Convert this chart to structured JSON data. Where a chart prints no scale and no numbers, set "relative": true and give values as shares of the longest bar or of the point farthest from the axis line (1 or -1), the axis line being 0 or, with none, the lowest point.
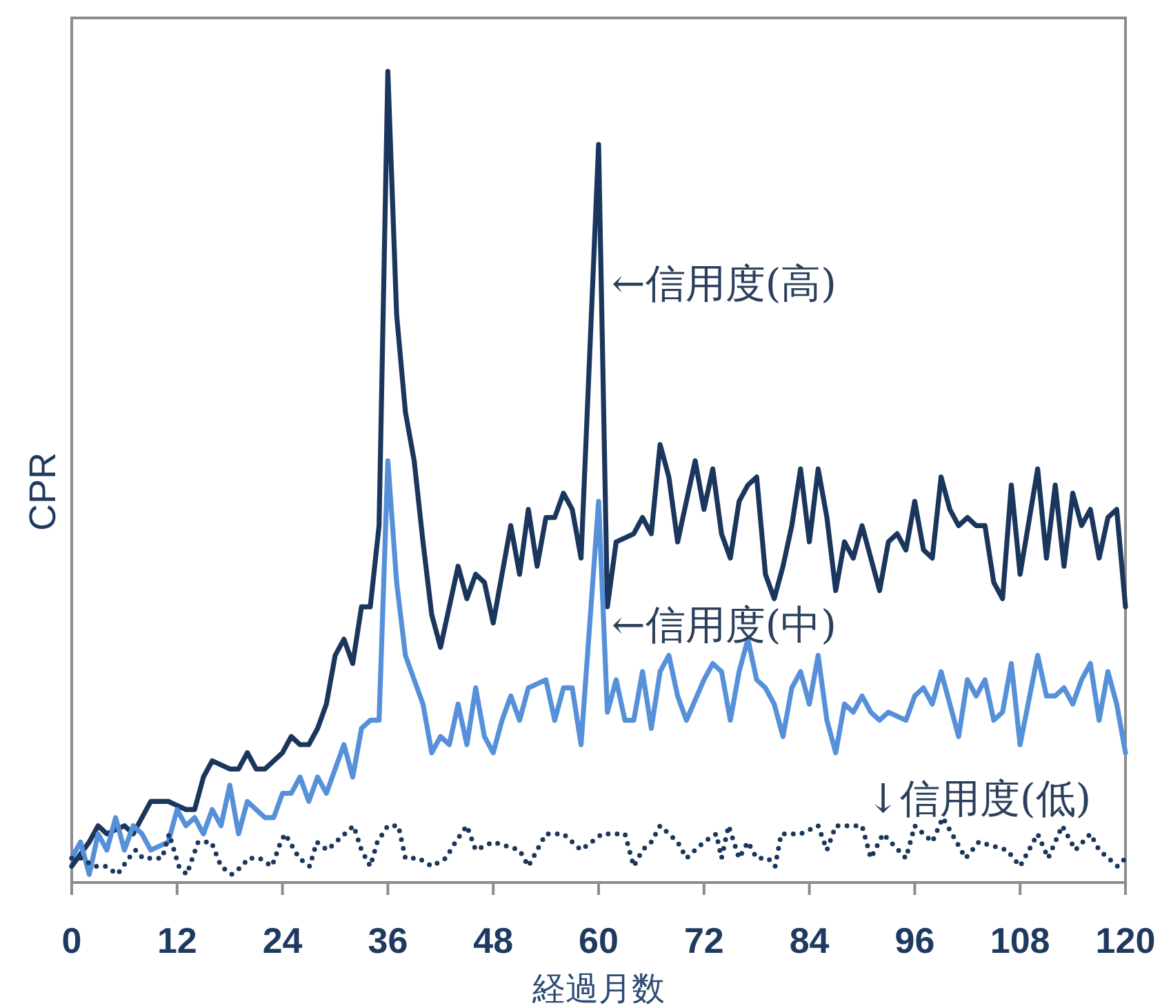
{
  "chart_data": {
    "type": "line",
    "relative": true,
    "xlabel": "経過月数",
    "ylabel": "CPR",
    "xlim": [
      0,
      120
    ],
    "xticks": [
      0,
      12,
      24,
      36,
      48,
      60,
      72,
      84,
      96,
      108,
      120
    ],
    "marker": "none",
    "series": [
      {
        "name": "←信用度(高)",
        "color": "#1b365d",
        "line_style": "solid",
        "x": [
          0,
          2,
          3,
          4,
          5,
          6,
          7,
          8,
          9,
          10,
          11,
          13,
          14,
          15,
          16,
          18,
          19,
          20,
          21,
          22,
          24,
          25,
          26,
          27,
          28,
          29,
          30,
          31,
          32,
          33,
          34,
          35,
          36,
          37,
          38,
          39,
          40,
          41,
          42,
          44,
          45,
          46,
          47,
          48,
          50,
          51,
          52,
          53,
          54,
          55,
          56,
          57,
          58,
          60,
          61,
          62,
          64,
          65,
          66,
          67,
          68,
          69,
          71,
          72,
          73,
          74,
          75,
          76,
          77,
          78,
          79,
          80,
          81,
          82,
          83,
          84,
          85,
          86,
          87,
          88,
          89,
          90,
          92,
          93,
          94,
          95,
          96,
          97,
          98,
          99,
          100,
          101,
          102,
          103,
          104,
          105,
          106,
          107,
          108,
          110,
          111,
          112,
          113,
          114,
          115,
          116,
          117,
          118,
          119,
          120
        ],
        "values": [
          0.02,
          0.05,
          0.07,
          0.06,
          0.065,
          0.07,
          0.06,
          0.08,
          0.1,
          0.1,
          0.1,
          0.09,
          0.09,
          0.13,
          0.15,
          0.14,
          0.14,
          0.16,
          0.14,
          0.14,
          0.16,
          0.18,
          0.17,
          0.17,
          0.19,
          0.22,
          0.28,
          0.3,
          0.27,
          0.34,
          0.34,
          0.44,
          1.0,
          0.7,
          0.58,
          0.52,
          0.42,
          0.33,
          0.29,
          0.39,
          0.35,
          0.38,
          0.37,
          0.32,
          0.44,
          0.38,
          0.46,
          0.39,
          0.45,
          0.45,
          0.48,
          0.46,
          0.4,
          0.91,
          0.34,
          0.42,
          0.43,
          0.45,
          0.43,
          0.54,
          0.5,
          0.42,
          0.52,
          0.46,
          0.51,
          0.43,
          0.4,
          0.47,
          0.49,
          0.5,
          0.38,
          0.35,
          0.39,
          0.44,
          0.51,
          0.42,
          0.51,
          0.45,
          0.36,
          0.42,
          0.4,
          0.44,
          0.36,
          0.42,
          0.43,
          0.41,
          0.47,
          0.41,
          0.4,
          0.5,
          0.46,
          0.44,
          0.45,
          0.44,
          0.44,
          0.37,
          0.35,
          0.49,
          0.38,
          0.51,
          0.4,
          0.49,
          0.39,
          0.48,
          0.44,
          0.46,
          0.4,
          0.45,
          0.46,
          0.34
        ]
      },
      {
        "name": "←信用度(中)",
        "color": "#5590d9",
        "line_style": "solid",
        "x": [
          0,
          1,
          2,
          3,
          4,
          5,
          6,
          7,
          8,
          9,
          11,
          12,
          13,
          14,
          15,
          16,
          17,
          18,
          19,
          20,
          21,
          22,
          23,
          24,
          25,
          26,
          27,
          28,
          29,
          31,
          32,
          33,
          34,
          35,
          36,
          37,
          38,
          39,
          40,
          41,
          42,
          43,
          44,
          45,
          46,
          47,
          48,
          49,
          50,
          51,
          52,
          54,
          55,
          56,
          57,
          58,
          60,
          61,
          62,
          63,
          64,
          65,
          66,
          67,
          68,
          69,
          70,
          72,
          73,
          74,
          75,
          76,
          77,
          78,
          79,
          80,
          81,
          82,
          83,
          84,
          85,
          86,
          87,
          88,
          89,
          90,
          91,
          92,
          93,
          95,
          96,
          97,
          98,
          99,
          100,
          101,
          102,
          103,
          104,
          105,
          106,
          107,
          108,
          110,
          111,
          112,
          113,
          114,
          115,
          116,
          117,
          118,
          119,
          120
        ],
        "values": [
          0.03,
          0.05,
          0.01,
          0.06,
          0.04,
          0.08,
          0.04,
          0.07,
          0.06,
          0.04,
          0.05,
          0.09,
          0.07,
          0.08,
          0.06,
          0.09,
          0.07,
          0.12,
          0.06,
          0.1,
          0.09,
          0.08,
          0.08,
          0.11,
          0.11,
          0.13,
          0.1,
          0.13,
          0.11,
          0.17,
          0.13,
          0.19,
          0.2,
          0.2,
          0.52,
          0.37,
          0.28,
          0.25,
          0.22,
          0.16,
          0.18,
          0.17,
          0.22,
          0.17,
          0.24,
          0.18,
          0.16,
          0.2,
          0.23,
          0.2,
          0.24,
          0.25,
          0.2,
          0.24,
          0.24,
          0.17,
          0.47,
          0.21,
          0.25,
          0.2,
          0.2,
          0.26,
          0.19,
          0.26,
          0.28,
          0.23,
          0.2,
          0.25,
          0.27,
          0.26,
          0.2,
          0.26,
          0.3,
          0.25,
          0.24,
          0.22,
          0.18,
          0.24,
          0.26,
          0.22,
          0.28,
          0.2,
          0.16,
          0.22,
          0.21,
          0.23,
          0.21,
          0.2,
          0.21,
          0.2,
          0.23,
          0.24,
          0.22,
          0.26,
          0.22,
          0.18,
          0.25,
          0.23,
          0.25,
          0.2,
          0.21,
          0.27,
          0.17,
          0.28,
          0.23,
          0.23,
          0.24,
          0.22,
          0.25,
          0.27,
          0.2,
          0.26,
          0.22,
          0.16
        ]
      },
      {
        "name": "↓信用度(低)",
        "color": "#1b365d",
        "line_style": "dotted",
        "x": [
          0,
          1,
          2.6,
          3.9,
          5.2,
          6.5,
          7.3,
          8.1,
          9.4,
          10.3,
          11.1,
          12.2,
          13.1,
          14.4,
          15.9,
          17,
          18.2,
          19.4,
          20.1,
          21.4,
          22.8,
          23.8,
          24.3,
          25.9,
          27.1,
          27.9,
          29.1,
          30.1,
          32.1,
          33,
          34,
          34.8,
          36,
          37.2,
          38,
          39.5,
          41,
          42.6,
          43.7,
          45,
          46,
          48,
          51,
          52,
          54,
          56,
          58,
          60.4,
          62,
          63,
          64,
          65,
          66,
          67,
          69,
          70,
          72,
          73.4,
          74,
          74.8,
          76,
          77,
          78,
          79.3,
          80.1,
          80.8,
          82.4,
          83,
          85,
          86,
          87,
          90,
          91,
          92.4,
          95,
          96,
          98,
          99.2,
          101.8,
          103.3,
          106.5,
          108,
          110,
          111.2,
          112.8,
          114.3,
          116,
          117,
          119.1,
          120
        ],
        "values": [
          0.03,
          0.03,
          0.02,
          0.02,
          0.01,
          0.03,
          0.04,
          0.03,
          0.03,
          0.03,
          0.06,
          0.02,
          0.01,
          0.05,
          0.05,
          0.02,
          0.01,
          0.02,
          0.03,
          0.03,
          0.02,
          0.05,
          0.06,
          0.03,
          0.02,
          0.05,
          0.04,
          0.05,
          0.07,
          0.04,
          0.02,
          0.05,
          0.07,
          0.07,
          0.03,
          0.03,
          0.02,
          0.03,
          0.05,
          0.07,
          0.04,
          0.05,
          0.04,
          0.02,
          0.06,
          0.06,
          0.04,
          0.06,
          0.06,
          0.06,
          0.02,
          0.04,
          0.05,
          0.07,
          0.05,
          0.03,
          0.05,
          0.06,
          0.03,
          0.07,
          0.03,
          0.05,
          0.03,
          0.03,
          0.02,
          0.06,
          0.06,
          0.06,
          0.07,
          0.04,
          0.07,
          0.07,
          0.03,
          0.06,
          0.03,
          0.07,
          0.05,
          0.08,
          0.03,
          0.05,
          0.04,
          0.02,
          0.06,
          0.03,
          0.07,
          0.04,
          0.06,
          0.04,
          0.02,
          0.03
        ]
      }
    ]
  }
}
